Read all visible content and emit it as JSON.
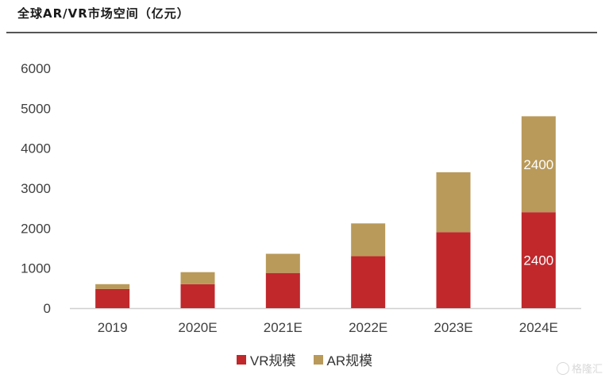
{
  "header": {
    "title": "全球AR/VR市场空间（亿元）"
  },
  "colors": {
    "vr": "#c0282c",
    "ar": "#b99a5a",
    "axis": "#d0d0d0",
    "text": "#404040",
    "label": "#ffffff"
  },
  "chart_data": {
    "type": "bar",
    "stacked": true,
    "categories": [
      "2019",
      "2020E",
      "2021E",
      "2022E",
      "2023E",
      "2024E"
    ],
    "series": [
      {
        "name": "VR规模",
        "values": [
          480,
          600,
          880,
          1300,
          1900,
          2400
        ]
      },
      {
        "name": "AR规模",
        "values": [
          120,
          300,
          480,
          820,
          1500,
          2400
        ]
      }
    ],
    "data_labels": [
      {
        "series": 0,
        "index": 5,
        "text": "2400"
      },
      {
        "series": 1,
        "index": 5,
        "text": "2400"
      }
    ],
    "y_ticks": [
      0,
      1000,
      2000,
      3000,
      4000,
      5000,
      6000
    ],
    "ylim": [
      0,
      6000
    ],
    "grid": false,
    "legend": "bottom-center"
  },
  "watermark": {
    "text": "格隆汇"
  }
}
